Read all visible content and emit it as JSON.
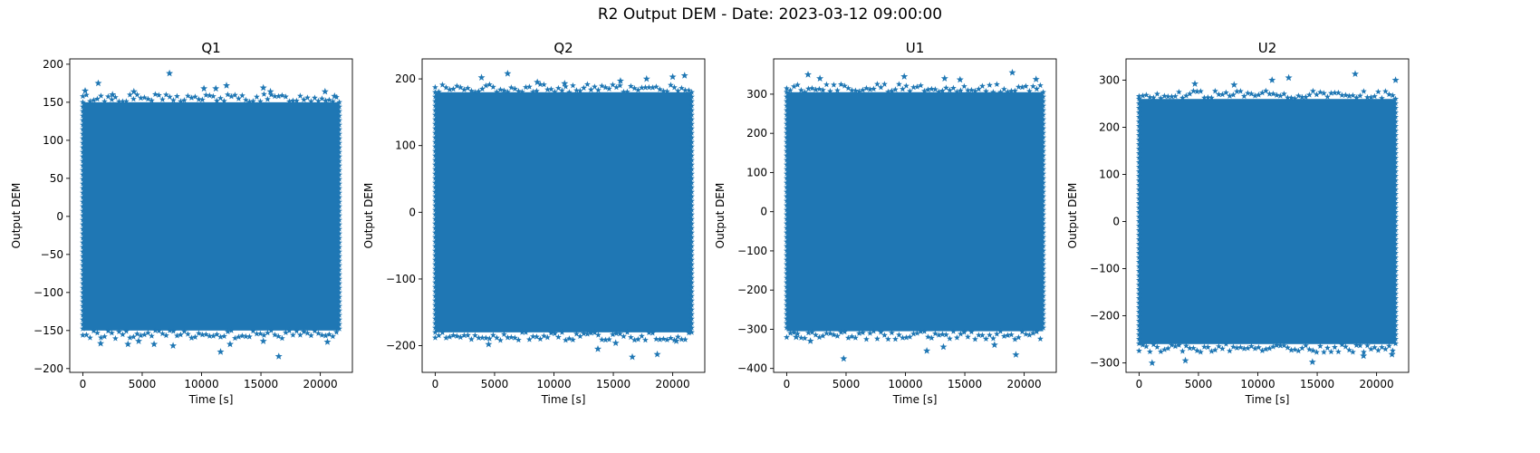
{
  "figure": {
    "title": "R2 Output DEM - Date: 2023-03-12 09:00:00"
  },
  "style": {
    "marker_color": "#1f77b4",
    "marker_shape": "star",
    "axes_color": "#000000",
    "background": "#ffffff"
  },
  "chart_data": [
    {
      "type": "scatter",
      "title": "Q1",
      "xlabel": "Time [s]",
      "ylabel": "Output DEM",
      "xlim": [
        -1100,
        22700
      ],
      "ylim": [
        -205,
        207
      ],
      "xticks": [
        0,
        5000,
        10000,
        15000,
        20000
      ],
      "yticks": [
        -200,
        -150,
        -100,
        -50,
        0,
        50,
        100,
        150,
        200
      ],
      "x_range": [
        0,
        21600
      ],
      "band": [
        -150,
        150
      ],
      "outliers": [
        [
          200,
          165
        ],
        [
          1300,
          175
        ],
        [
          2500,
          160
        ],
        [
          4300,
          164
        ],
        [
          7300,
          188
        ],
        [
          10200,
          168
        ],
        [
          11200,
          168
        ],
        [
          12100,
          172
        ],
        [
          15200,
          169
        ],
        [
          15800,
          164
        ],
        [
          20400,
          164
        ],
        [
          21200,
          158
        ],
        [
          1500,
          -167
        ],
        [
          3800,
          -168
        ],
        [
          4700,
          -164
        ],
        [
          6000,
          -168
        ],
        [
          7600,
          -170
        ],
        [
          11600,
          -178
        ],
        [
          12400,
          -168
        ],
        [
          15200,
          -164
        ],
        [
          16500,
          -184
        ],
        [
          20600,
          -165
        ]
      ]
    },
    {
      "type": "scatter",
      "title": "Q2",
      "xlabel": "Time [s]",
      "ylabel": "Output DEM",
      "xlim": [
        -1100,
        22700
      ],
      "ylim": [
        -240,
        230
      ],
      "xticks": [
        0,
        5000,
        10000,
        15000,
        20000
      ],
      "yticks": [
        -200,
        -100,
        0,
        100,
        200
      ],
      "x_range": [
        0,
        21600
      ],
      "band": [
        -180,
        180
      ],
      "outliers": [
        [
          3900,
          202
        ],
        [
          6100,
          208
        ],
        [
          8600,
          195
        ],
        [
          10900,
          193
        ],
        [
          15600,
          197
        ],
        [
          17800,
          200
        ],
        [
          20000,
          203
        ],
        [
          21000,
          205
        ],
        [
          4500,
          -198
        ],
        [
          13700,
          -205
        ],
        [
          15200,
          -196
        ],
        [
          16600,
          -217
        ],
        [
          18700,
          -213
        ],
        [
          20300,
          -193
        ]
      ]
    },
    {
      "type": "scatter",
      "title": "U1",
      "xlabel": "Time [s]",
      "ylabel": "Output DEM",
      "xlim": [
        -1100,
        22700
      ],
      "ylim": [
        -410,
        390
      ],
      "xticks": [
        0,
        5000,
        10000,
        15000,
        20000
      ],
      "yticks": [
        -400,
        -300,
        -200,
        -100,
        0,
        100,
        200,
        300
      ],
      "x_range": [
        0,
        21600
      ],
      "band": [
        -305,
        305
      ],
      "outliers": [
        [
          1800,
          350
        ],
        [
          2800,
          340
        ],
        [
          9900,
          345
        ],
        [
          13300,
          340
        ],
        [
          14600,
          337
        ],
        [
          19000,
          355
        ],
        [
          21000,
          338
        ],
        [
          800,
          -320
        ],
        [
          2000,
          -330
        ],
        [
          4800,
          -375
        ],
        [
          11800,
          -355
        ],
        [
          13200,
          -345
        ],
        [
          17500,
          -340
        ],
        [
          19300,
          -365
        ]
      ]
    },
    {
      "type": "scatter",
      "title": "U2",
      "xlabel": "Time [s]",
      "ylabel": "Output DEM",
      "xlim": [
        -1100,
        22700
      ],
      "ylim": [
        -320,
        345
      ],
      "xticks": [
        0,
        5000,
        10000,
        15000,
        20000
      ],
      "yticks": [
        -300,
        -200,
        -100,
        0,
        100,
        200,
        300
      ],
      "x_range": [
        0,
        21600
      ],
      "band": [
        -260,
        260
      ],
      "outliers": [
        [
          4700,
          292
        ],
        [
          8000,
          290
        ],
        [
          11200,
          300
        ],
        [
          12600,
          305
        ],
        [
          18200,
          313
        ],
        [
          21600,
          300
        ],
        [
          1100,
          -300
        ],
        [
          3900,
          -295
        ],
        [
          14600,
          -298
        ],
        [
          18900,
          -285
        ],
        [
          21300,
          -282
        ]
      ]
    }
  ]
}
